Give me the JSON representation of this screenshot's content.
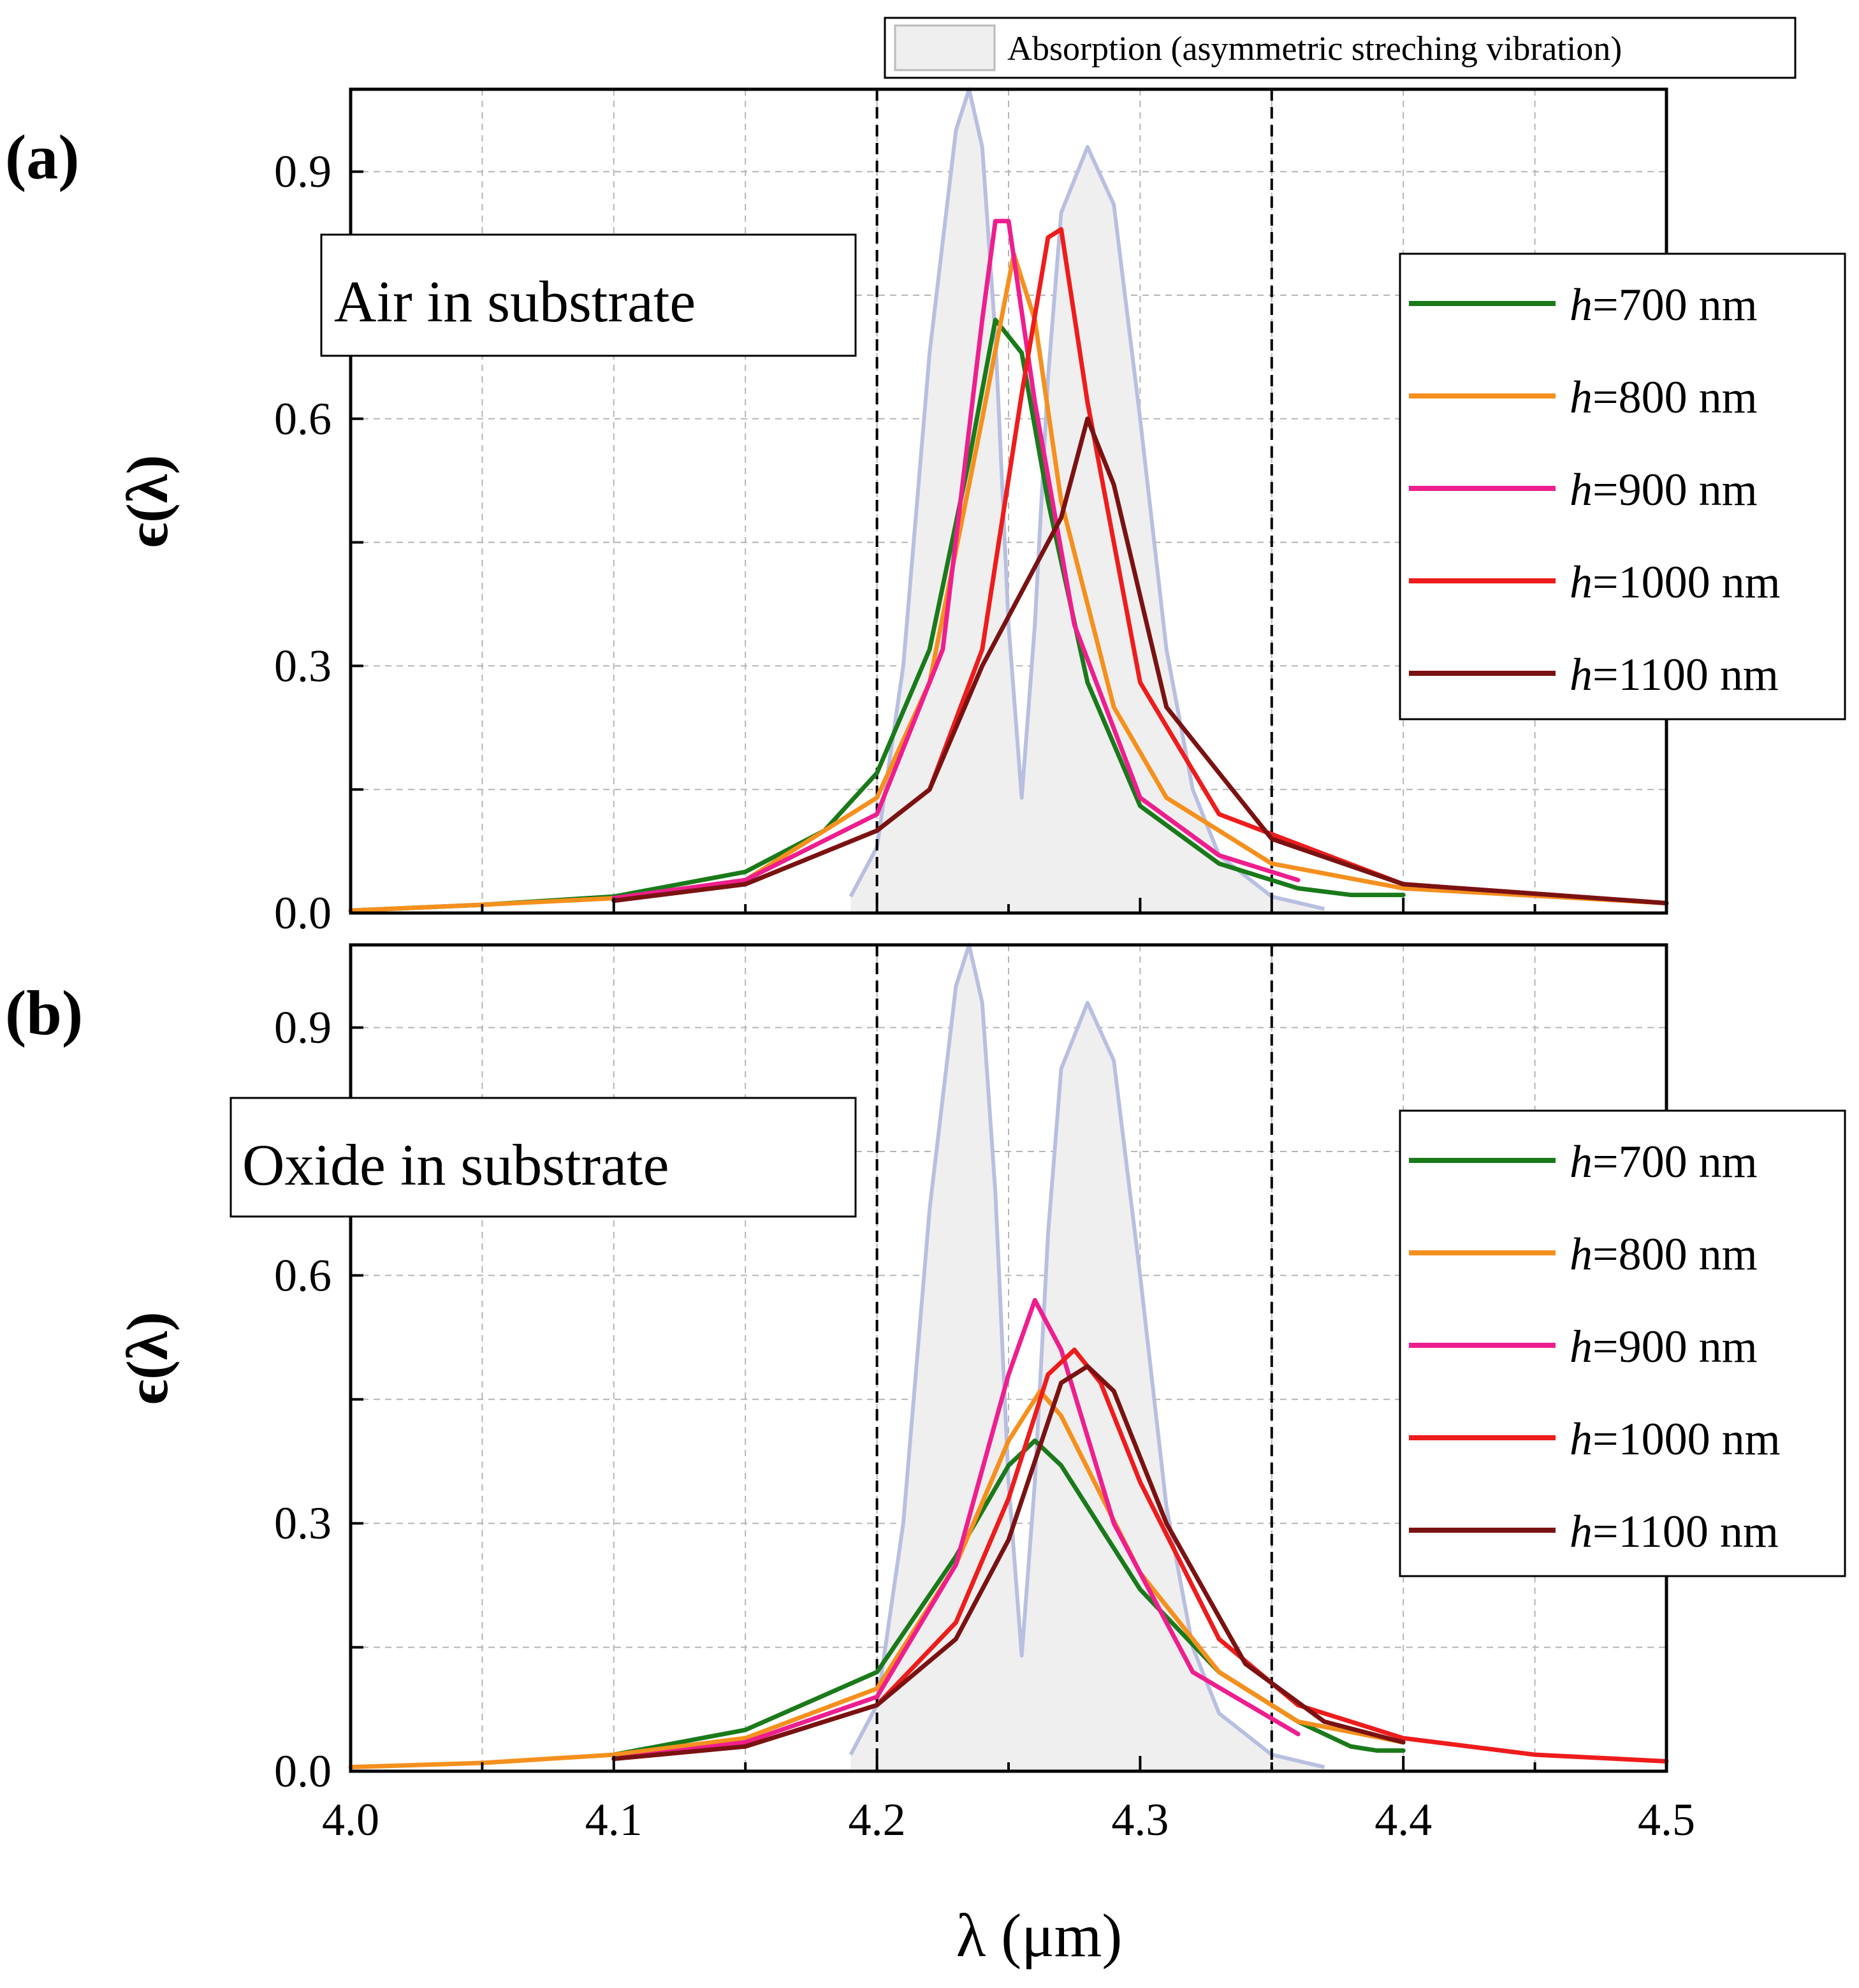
{
  "figure": {
    "top_legend_label": "Absorption (asymmetric streching vibration)",
    "x_axis_label": "λ (μm)",
    "y_axis_label": "ϵ(λ)",
    "absorption_color": "#b8bfe0",
    "absorption_fill": "#efefef",
    "legend_prefix": "h",
    "vlines": [
      4.2,
      4.35
    ]
  },
  "chart_data": [
    {
      "type": "line",
      "panel_label": "(a)",
      "inset_label": "Air in substrate",
      "xlim": [
        4.0,
        4.5
      ],
      "ylim": [
        0,
        1.0
      ],
      "x_ticks": [
        "4.0",
        "4.1",
        "4.2",
        "4.3",
        "4.4",
        "4.5"
      ],
      "y_ticks": [
        "0.0",
        "0.3",
        "0.6",
        "0.9"
      ],
      "grid": true,
      "legend_placement": "right",
      "series": [
        {
          "name": "=700 nm",
          "color": "#1a7a1a",
          "x": [
            4.0,
            4.05,
            4.1,
            4.15,
            4.18,
            4.2,
            4.22,
            4.235,
            4.245,
            4.255,
            4.265,
            4.28,
            4.3,
            4.33,
            4.36,
            4.38,
            4.4
          ],
          "y": [
            0.003,
            0.01,
            0.02,
            0.05,
            0.1,
            0.17,
            0.32,
            0.55,
            0.72,
            0.68,
            0.5,
            0.28,
            0.13,
            0.06,
            0.03,
            0.022,
            0.022
          ]
        },
        {
          "name": "=800 nm",
          "color": "#f5901e",
          "x": [
            4.0,
            4.05,
            4.1,
            4.15,
            4.2,
            4.22,
            4.24,
            4.252,
            4.26,
            4.27,
            4.29,
            4.31,
            4.35,
            4.4,
            4.5
          ],
          "y": [
            0.003,
            0.01,
            0.018,
            0.04,
            0.14,
            0.28,
            0.6,
            0.8,
            0.72,
            0.5,
            0.25,
            0.14,
            0.06,
            0.03,
            0.012
          ]
        },
        {
          "name": "=900 nm",
          "color": "#ee1e8e",
          "x": [
            4.1,
            4.15,
            4.2,
            4.225,
            4.24,
            4.245,
            4.25,
            4.26,
            4.275,
            4.3,
            4.33,
            4.36
          ],
          "y": [
            0.018,
            0.04,
            0.12,
            0.32,
            0.72,
            0.84,
            0.84,
            0.62,
            0.35,
            0.14,
            0.07,
            0.04
          ]
        },
        {
          "name": "=1000 nm",
          "color": "#ee1c1c",
          "x": [
            4.1,
            4.15,
            4.2,
            4.22,
            4.24,
            4.255,
            4.265,
            4.27,
            4.28,
            4.3,
            4.33,
            4.4,
            4.5
          ],
          "y": [
            0.015,
            0.035,
            0.1,
            0.15,
            0.32,
            0.63,
            0.82,
            0.83,
            0.62,
            0.28,
            0.12,
            0.035,
            0.012
          ]
        },
        {
          "name": "=1100 nm",
          "color": "#7a1212",
          "x": [
            4.1,
            4.15,
            4.2,
            4.22,
            4.24,
            4.26,
            4.27,
            4.28,
            4.29,
            4.31,
            4.35,
            4.4,
            4.5
          ],
          "y": [
            0.015,
            0.035,
            0.1,
            0.15,
            0.3,
            0.42,
            0.48,
            0.6,
            0.52,
            0.25,
            0.09,
            0.035,
            0.012
          ]
        }
      ],
      "absorption": {
        "name": "Absorption (asymmetric streching vibration)",
        "x": [
          4.19,
          4.2,
          4.21,
          4.22,
          4.23,
          4.235,
          4.24,
          4.245,
          4.25,
          4.255,
          4.26,
          4.265,
          4.27,
          4.28,
          4.29,
          4.3,
          4.31,
          4.32,
          4.33,
          4.35,
          4.37
        ],
        "y": [
          0.02,
          0.08,
          0.3,
          0.68,
          0.95,
          1.0,
          0.93,
          0.7,
          0.35,
          0.14,
          0.35,
          0.65,
          0.85,
          0.93,
          0.86,
          0.6,
          0.32,
          0.15,
          0.07,
          0.02,
          0.005
        ]
      }
    },
    {
      "type": "line",
      "panel_label": "(b)",
      "inset_label": "Oxide in substrate",
      "xlim": [
        4.0,
        4.5
      ],
      "ylim": [
        0,
        1.0
      ],
      "x_ticks": [
        "4.0",
        "4.1",
        "4.2",
        "4.3",
        "4.4",
        "4.5"
      ],
      "y_ticks": [
        "0.0",
        "0.3",
        "0.6",
        "0.9"
      ],
      "grid": true,
      "legend_placement": "right",
      "series": [
        {
          "name": "=700 nm",
          "color": "#1a7a1a",
          "x": [
            4.1,
            4.15,
            4.2,
            4.23,
            4.25,
            4.26,
            4.27,
            4.3,
            4.33,
            4.36,
            4.38,
            4.39,
            4.4
          ],
          "y": [
            0.02,
            0.05,
            0.12,
            0.26,
            0.37,
            0.4,
            0.37,
            0.22,
            0.12,
            0.06,
            0.03,
            0.025,
            0.025
          ]
        },
        {
          "name": "=800 nm",
          "color": "#f5901e",
          "x": [
            4.0,
            4.05,
            4.1,
            4.15,
            4.2,
            4.23,
            4.25,
            4.262,
            4.27,
            4.3,
            4.33,
            4.36,
            4.4
          ],
          "y": [
            0.005,
            0.01,
            0.02,
            0.04,
            0.1,
            0.25,
            0.4,
            0.46,
            0.43,
            0.24,
            0.12,
            0.06,
            0.035
          ]
        },
        {
          "name": "=900 nm",
          "color": "#ee1e8e",
          "x": [
            4.1,
            4.15,
            4.2,
            4.23,
            4.25,
            4.26,
            4.27,
            4.29,
            4.32,
            4.36
          ],
          "y": [
            0.015,
            0.035,
            0.09,
            0.25,
            0.48,
            0.57,
            0.51,
            0.3,
            0.12,
            0.045
          ]
        },
        {
          "name": "=1000 nm",
          "color": "#ee1c1c",
          "x": [
            4.1,
            4.15,
            4.2,
            4.23,
            4.25,
            4.265,
            4.275,
            4.285,
            4.3,
            4.33,
            4.36,
            4.4,
            4.45,
            4.5
          ],
          "y": [
            0.015,
            0.03,
            0.08,
            0.18,
            0.33,
            0.48,
            0.51,
            0.47,
            0.35,
            0.16,
            0.08,
            0.04,
            0.02,
            0.012
          ]
        },
        {
          "name": "=1100 nm",
          "color": "#7a1212",
          "x": [
            4.1,
            4.15,
            4.2,
            4.23,
            4.25,
            4.27,
            4.28,
            4.29,
            4.31,
            4.34,
            4.37,
            4.4
          ],
          "y": [
            0.015,
            0.03,
            0.08,
            0.16,
            0.28,
            0.47,
            0.49,
            0.46,
            0.3,
            0.13,
            0.06,
            0.035
          ]
        }
      ],
      "absorption": {
        "name": "Absorption (asymmetric streching vibration)",
        "x": [
          4.19,
          4.2,
          4.21,
          4.22,
          4.23,
          4.235,
          4.24,
          4.245,
          4.25,
          4.255,
          4.26,
          4.265,
          4.27,
          4.28,
          4.29,
          4.3,
          4.31,
          4.32,
          4.33,
          4.35,
          4.37
        ],
        "y": [
          0.02,
          0.08,
          0.3,
          0.68,
          0.95,
          1.0,
          0.93,
          0.7,
          0.35,
          0.14,
          0.35,
          0.65,
          0.85,
          0.93,
          0.86,
          0.6,
          0.32,
          0.15,
          0.07,
          0.02,
          0.005
        ]
      }
    }
  ]
}
